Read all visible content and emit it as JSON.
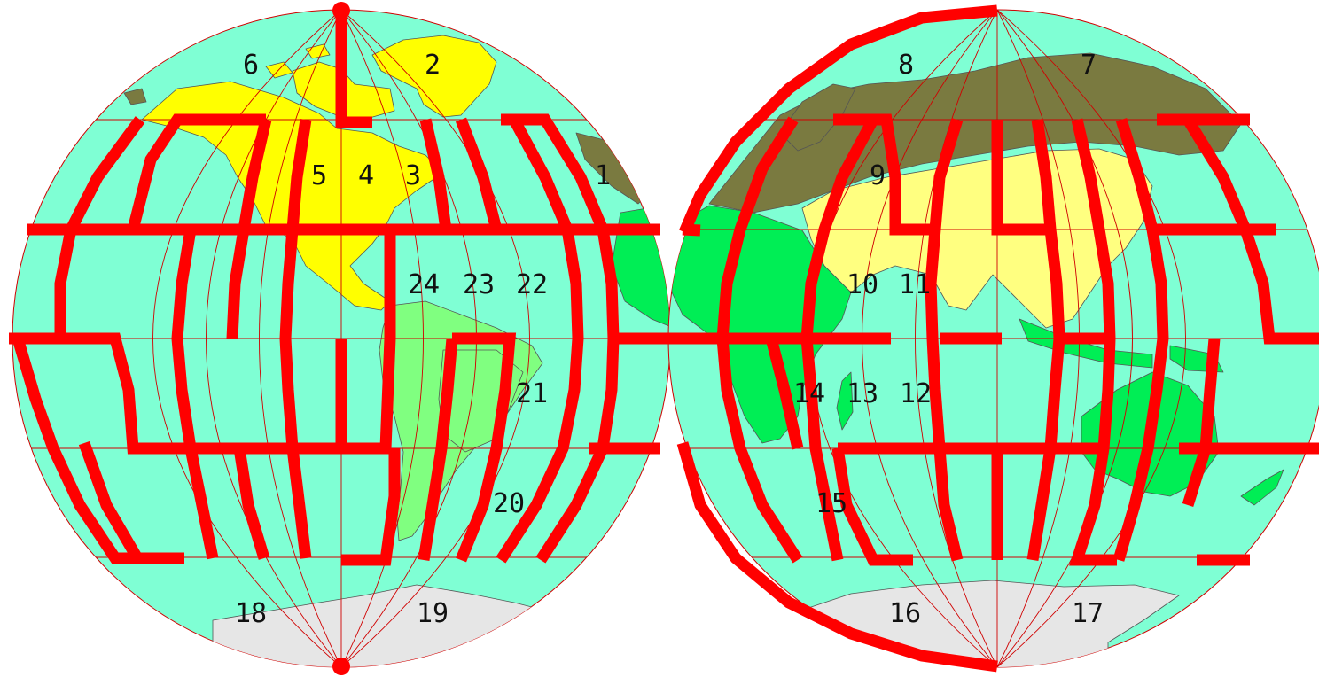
{
  "map": {
    "type": "interrupted-globe-projection",
    "colors": {
      "ocean": "#7fffd4",
      "north_america": "#ffff00",
      "south_america": "#80ff80",
      "africa": "#00ee55",
      "europe_russia": "#7a7a40",
      "asia": "#ffff80",
      "oceania": "#00ee55",
      "antarctica": "#e6e6e6",
      "cut_lines": "#ff0000",
      "graticule": "#cc0000"
    },
    "zones": [
      {
        "id": "1"
      },
      {
        "id": "2"
      },
      {
        "id": "3"
      },
      {
        "id": "4"
      },
      {
        "id": "5"
      },
      {
        "id": "6"
      },
      {
        "id": "7"
      },
      {
        "id": "8"
      },
      {
        "id": "9"
      },
      {
        "id": "10"
      },
      {
        "id": "11"
      },
      {
        "id": "12"
      },
      {
        "id": "13"
      },
      {
        "id": "14"
      },
      {
        "id": "15"
      },
      {
        "id": "16"
      },
      {
        "id": "17"
      },
      {
        "id": "18"
      },
      {
        "id": "19"
      },
      {
        "id": "20"
      },
      {
        "id": "21"
      },
      {
        "id": "22"
      },
      {
        "id": "23"
      },
      {
        "id": "24"
      }
    ]
  }
}
